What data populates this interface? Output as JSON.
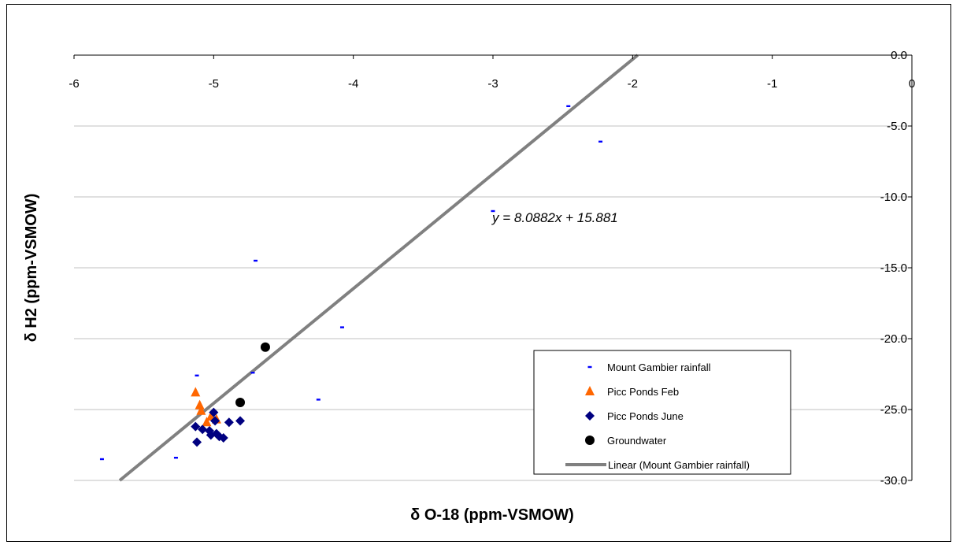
{
  "chart_data": {
    "type": "scatter",
    "xlabel": "δ O-18 (ppm-VSMOW)",
    "ylabel": "δ H2 (ppm-VSMOW)",
    "xlim": [
      -6,
      0
    ],
    "ylim": [
      -30,
      0
    ],
    "x_ticks": [
      -6,
      -5,
      -4,
      -3,
      -2,
      -1,
      0
    ],
    "x_tick_labels": [
      "-6",
      "-5",
      "-4",
      "-3",
      "-2",
      "-1",
      "0"
    ],
    "y_ticks": [
      0,
      -5,
      -10,
      -15,
      -20,
      -25,
      -30
    ],
    "y_tick_labels": [
      "0.0",
      "-5.0",
      "-10.0",
      "-15.0",
      "-20.0",
      "-25.0",
      "-30.0"
    ],
    "grid": "horizontal",
    "legend_position": "bottom-right",
    "series": [
      {
        "name": "Mount Gambier rainfall",
        "marker": "small-dash",
        "color": "#0000ff",
        "points": [
          [
            -5.8,
            -28.5
          ],
          [
            -5.27,
            -28.4
          ],
          [
            -5.12,
            -22.6
          ],
          [
            -4.72,
            -22.4
          ],
          [
            -4.7,
            -14.5
          ],
          [
            -4.25,
            -24.3
          ],
          [
            -4.08,
            -19.2
          ],
          [
            -3.0,
            -11.0
          ],
          [
            -2.46,
            -3.6
          ],
          [
            -2.23,
            -6.1
          ]
        ]
      },
      {
        "name": "Picc Ponds Feb",
        "marker": "triangle",
        "color": "#ff6600",
        "points": [
          [
            -5.13,
            -23.8
          ],
          [
            -5.1,
            -24.7
          ],
          [
            -5.09,
            -25.1
          ],
          [
            -5.05,
            -25.9
          ],
          [
            -5.02,
            -25.5
          ],
          [
            -4.98,
            -25.7
          ]
        ]
      },
      {
        "name": "Picc Ponds June",
        "marker": "diamond",
        "color": "#000080",
        "points": [
          [
            -5.13,
            -26.2
          ],
          [
            -5.12,
            -27.3
          ],
          [
            -5.08,
            -26.4
          ],
          [
            -5.03,
            -26.5
          ],
          [
            -5.02,
            -26.8
          ],
          [
            -5.0,
            -25.2
          ],
          [
            -4.99,
            -25.8
          ],
          [
            -4.98,
            -26.7
          ],
          [
            -4.96,
            -26.9
          ],
          [
            -4.93,
            -27.0
          ],
          [
            -4.89,
            -25.9
          ],
          [
            -4.81,
            -25.8
          ]
        ]
      },
      {
        "name": "Groundwater",
        "marker": "circle",
        "color": "#000000",
        "points": [
          [
            -4.81,
            -24.5
          ],
          [
            -4.63,
            -20.6
          ]
        ]
      }
    ],
    "trendline": {
      "name": "Linear (Mount Gambier rainfall)",
      "color": "#808080",
      "slope": 8.0882,
      "intercept": 15.881,
      "equation_label": "y = 8.0882x + 15.881"
    }
  }
}
